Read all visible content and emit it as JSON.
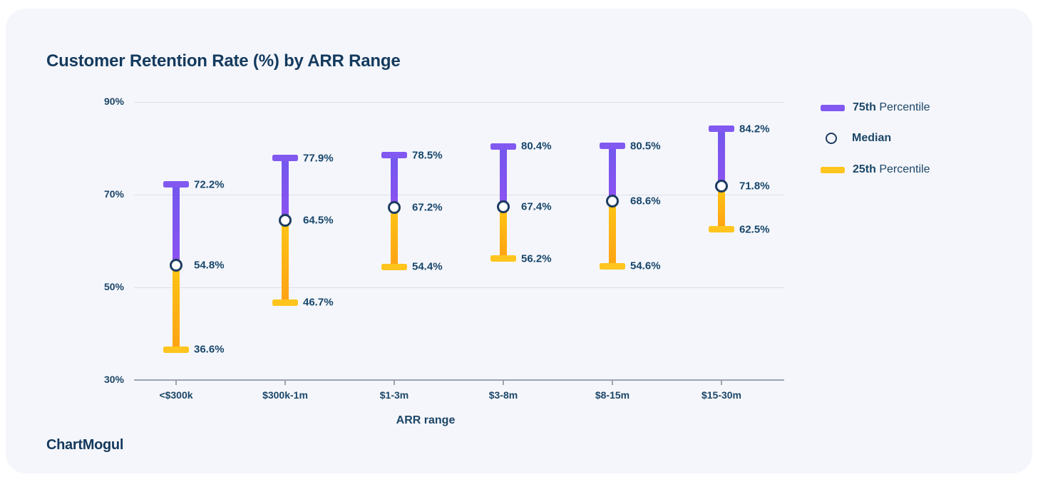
{
  "title": "Customer Retention Rate (%) by ARR Range",
  "logo_text": "ChartMogul",
  "legend": {
    "items": [
      {
        "swatch": "bar-purple",
        "strong": "75th",
        "rest": " Percentile"
      },
      {
        "swatch": "circle",
        "strong": "Median",
        "rest": ""
      },
      {
        "swatch": "bar-yellow",
        "strong": "25th",
        "rest": " Percentile"
      }
    ]
  },
  "chart_data": {
    "type": "range-bar-percentile",
    "title": "Customer Retention Rate (%) by ARR Range",
    "categories": [
      "<$300k",
      "$300k-1m",
      "$1-3m",
      "$3-8m",
      "$8-15m",
      "$15-30m"
    ],
    "series": [
      {
        "name": "75th Percentile",
        "values": [
          72.2,
          77.9,
          78.5,
          80.4,
          80.5,
          84.2
        ]
      },
      {
        "name": "Median",
        "values": [
          54.8,
          64.5,
          67.2,
          67.4,
          68.6,
          71.8
        ]
      },
      {
        "name": "25th Percentile",
        "values": [
          36.6,
          46.7,
          54.4,
          56.2,
          54.6,
          62.5
        ]
      }
    ],
    "xlabel": "ARR range",
    "ylabel": "",
    "ylim": [
      30,
      90
    ],
    "yticks": [
      90,
      70,
      50,
      30
    ],
    "ytick_labels": [
      "90%",
      "70%",
      "50%",
      "30%"
    ],
    "grid": true,
    "legend_position": "right",
    "value_label_format": "{v}%"
  },
  "colors": {
    "card_bg": "#F5F6FB",
    "navy_text": "#1B4668",
    "title_navy": "#143A5E",
    "purple_cap": "#8159F1",
    "purple_stem_top": "#7258EE",
    "purple_stem_bottom": "#8C52F0",
    "yellow_cap": "#FFC51E",
    "yellow_stem_top": "#FFC513",
    "yellow_stem_bottom": "#FFA214",
    "median_stroke": "#1C3C60",
    "gridline": "#DCDFE8",
    "axis_line": "#9CA3B0"
  }
}
